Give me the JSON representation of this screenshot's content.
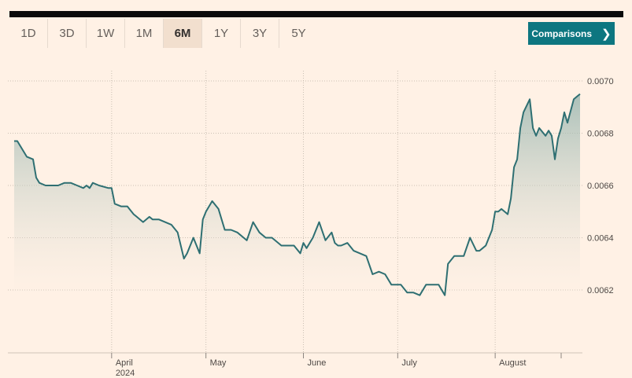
{
  "toolbar": {
    "ranges": [
      "1D",
      "3D",
      "1W",
      "1M",
      "6M",
      "1Y",
      "3Y",
      "5Y"
    ],
    "active_range": "6M",
    "comparisons_label": "Comparisons",
    "comparisons_icon": "chevron-right-icon"
  },
  "colors": {
    "background": "#fff1e5",
    "line": "#2e6f72",
    "accent": "#0d7680"
  },
  "chart_data": {
    "type": "area",
    "title": "",
    "xlabel": "",
    "ylabel": "",
    "ylim": [
      0.00605,
      0.00705
    ],
    "y_ticks": [
      "0.0062",
      "0.0064",
      "0.0066",
      "0.0068",
      "0.0070"
    ],
    "x_ticks": [
      {
        "date": "2024-04-01",
        "label": "April",
        "sub": "2024"
      },
      {
        "date": "2024-05-01",
        "label": "May",
        "sub": ""
      },
      {
        "date": "2024-06-01",
        "label": "June",
        "sub": ""
      },
      {
        "date": "2024-07-01",
        "label": "July",
        "sub": ""
      },
      {
        "date": "2024-08-01",
        "label": "August",
        "sub": ""
      }
    ],
    "x_start": "2024-03-01",
    "x_end": "2024-08-28",
    "grid": true,
    "series": [
      {
        "dates": [
          "2024-03-01",
          "2024-03-02",
          "2024-03-05",
          "2024-03-07",
          "2024-03-08",
          "2024-03-09",
          "2024-03-11",
          "2024-03-13",
          "2024-03-15",
          "2024-03-17",
          "2024-03-19",
          "2024-03-21",
          "2024-03-23",
          "2024-03-24",
          "2024-03-25",
          "2024-03-26",
          "2024-03-28",
          "2024-03-31",
          "2024-04-01",
          "2024-04-02",
          "2024-04-04",
          "2024-04-06",
          "2024-04-08",
          "2024-04-09",
          "2024-04-11",
          "2024-04-13",
          "2024-04-14",
          "2024-04-16",
          "2024-04-18",
          "2024-04-20",
          "2024-04-22",
          "2024-04-24",
          "2024-04-25",
          "2024-04-27",
          "2024-04-29",
          "2024-04-30",
          "2024-05-01",
          "2024-05-03",
          "2024-05-05",
          "2024-05-07",
          "2024-05-09",
          "2024-05-11",
          "2024-05-13",
          "2024-05-14",
          "2024-05-16",
          "2024-05-18",
          "2024-05-20",
          "2024-05-22",
          "2024-05-24",
          "2024-05-25",
          "2024-05-26",
          "2024-05-27",
          "2024-05-29",
          "2024-05-31",
          "2024-06-01",
          "2024-06-02",
          "2024-06-04",
          "2024-06-06",
          "2024-06-08",
          "2024-06-10",
          "2024-06-11",
          "2024-06-12",
          "2024-06-13",
          "2024-06-15",
          "2024-06-17",
          "2024-06-19",
          "2024-06-21",
          "2024-06-23",
          "2024-06-25",
          "2024-06-27",
          "2024-06-29",
          "2024-07-01",
          "2024-07-02",
          "2024-07-04",
          "2024-07-06",
          "2024-07-08",
          "2024-07-09",
          "2024-07-10",
          "2024-07-12",
          "2024-07-14",
          "2024-07-15",
          "2024-07-16",
          "2024-07-17",
          "2024-07-19",
          "2024-07-21",
          "2024-07-22",
          "2024-07-24",
          "2024-07-26",
          "2024-07-27",
          "2024-07-28",
          "2024-07-29",
          "2024-07-31",
          "2024-08-01",
          "2024-08-02",
          "2024-08-03",
          "2024-08-05",
          "2024-08-06",
          "2024-08-07",
          "2024-08-08",
          "2024-08-09",
          "2024-08-10",
          "2024-08-12",
          "2024-08-13",
          "2024-08-14",
          "2024-08-15",
          "2024-08-17",
          "2024-08-18",
          "2024-08-19",
          "2024-08-20",
          "2024-08-21",
          "2024-08-22",
          "2024-08-23",
          "2024-08-24",
          "2024-08-26",
          "2024-08-27",
          "2024-08-28"
        ],
        "values": [
          0.00677,
          0.00677,
          0.00671,
          0.0067,
          0.00663,
          0.00661,
          0.0066,
          0.0066,
          0.0066,
          0.00661,
          0.00661,
          0.0066,
          0.00659,
          0.0066,
          0.00659,
          0.00661,
          0.0066,
          0.00659,
          0.00659,
          0.00653,
          0.00652,
          0.00652,
          0.00649,
          0.00648,
          0.00646,
          0.00648,
          0.00647,
          0.00647,
          0.00646,
          0.00645,
          0.00642,
          0.00632,
          0.00634,
          0.0064,
          0.00634,
          0.00647,
          0.0065,
          0.00654,
          0.00651,
          0.00643,
          0.00643,
          0.00642,
          0.0064,
          0.00639,
          0.00646,
          0.00642,
          0.0064,
          0.0064,
          0.00638,
          0.00637,
          0.00637,
          0.00637,
          0.00637,
          0.00634,
          0.00638,
          0.00636,
          0.0064,
          0.00646,
          0.00639,
          0.00642,
          0.00638,
          0.00637,
          0.00637,
          0.00638,
          0.00635,
          0.00634,
          0.00633,
          0.00626,
          0.00627,
          0.00626,
          0.00622,
          0.00622,
          0.00622,
          0.00619,
          0.00619,
          0.00618,
          0.0062,
          0.00622,
          0.00622,
          0.00622,
          0.0062,
          0.00618,
          0.0063,
          0.00633,
          0.00633,
          0.00633,
          0.0064,
          0.00635,
          0.00635,
          0.00636,
          0.00637,
          0.00643,
          0.0065,
          0.0065,
          0.00651,
          0.00649,
          0.00655,
          0.00667,
          0.0067,
          0.00682,
          0.00688,
          0.00693,
          0.00682,
          0.00679,
          0.00682,
          0.00679,
          0.00681,
          0.00679,
          0.0067,
          0.00678,
          0.00682,
          0.00688,
          0.00684,
          0.00693,
          0.00694,
          0.00695
        ]
      }
    ]
  }
}
